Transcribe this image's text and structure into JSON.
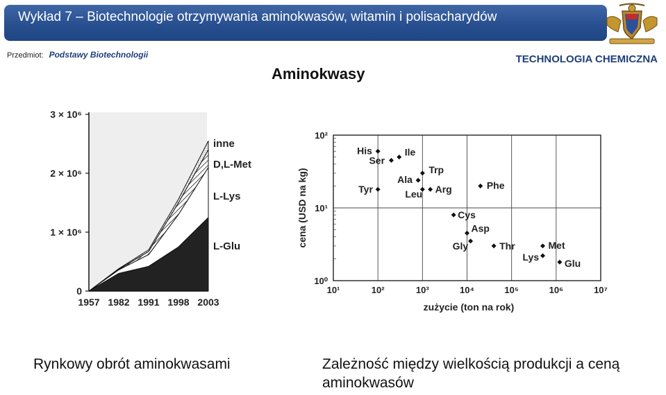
{
  "header": {
    "title": "Wykład 7 – Biotechnologie otrzymywania aminokwasów, witamin i polisacharydów",
    "subject_label": "Przedmiot:",
    "subject_value": "Podstawy Biotechnologii",
    "department": "TECHNOLOGIA CHEMICZNA",
    "crest_icon": "university-crest-icon"
  },
  "section_title": "Aminokwasy",
  "captions": {
    "left": "Rynkowy obrót aminokwasami",
    "right": "Zależność między wielkością produkcji a ceną aminokwasów"
  },
  "colors": {
    "banner": "#2b5291",
    "accent_text": "#1f3f7a"
  },
  "chart_data": [
    {
      "type": "area",
      "stacked": true,
      "x": [
        "1957",
        "1982",
        "1991",
        "1998",
        "2003"
      ],
      "ytick_labels": [
        "0",
        "1 × 10⁶",
        "2 × 10⁶",
        "3 × 10⁶"
      ],
      "ylim": [
        0,
        3000000
      ],
      "series": [
        {
          "name": "L-Glu",
          "values": [
            0,
            300000,
            420000,
            750000,
            1250000
          ]
        },
        {
          "name": "L-Lys",
          "values": [
            0,
            60000,
            200000,
            550000,
            850000
          ]
        },
        {
          "name": "D,L-Met",
          "values": [
            0,
            10000,
            50000,
            200000,
            300000
          ]
        },
        {
          "name": "inne",
          "values": [
            0,
            10000,
            30000,
            60000,
            150000
          ]
        }
      ]
    },
    {
      "type": "scatter",
      "xlabel": "zużycie (ton na rok)",
      "ylabel": "cena (USD na kg)",
      "x_log": true,
      "y_log": true,
      "xlim": [
        10,
        10000000
      ],
      "ylim": [
        1,
        100
      ],
      "xtick_labels": [
        "10¹",
        "10²",
        "10³",
        "10⁴",
        "10⁵",
        "10⁶",
        "10⁷"
      ],
      "ytick_labels": [
        "10⁰",
        "10¹",
        "10²"
      ],
      "points": [
        {
          "label": "His",
          "x": 100,
          "y": 60
        },
        {
          "label": "Ile",
          "x": 300,
          "y": 50
        },
        {
          "label": "Ser",
          "x": 200,
          "y": 45
        },
        {
          "label": "Trp",
          "x": 1000,
          "y": 30
        },
        {
          "label": "Ala",
          "x": 800,
          "y": 24
        },
        {
          "label": "Tyr",
          "x": 100,
          "y": 18
        },
        {
          "label": "Leu",
          "x": 1000,
          "y": 18
        },
        {
          "label": "Arg",
          "x": 1500,
          "y": 18
        },
        {
          "label": "Phe",
          "x": 20000,
          "y": 20
        },
        {
          "label": "Cys",
          "x": 5000,
          "y": 8
        },
        {
          "label": "Asp",
          "x": 10000,
          "y": 4.5
        },
        {
          "label": "Gly",
          "x": 12000,
          "y": 3.5
        },
        {
          "label": "Thr",
          "x": 40000,
          "y": 3
        },
        {
          "label": "Met",
          "x": 500000,
          "y": 3
        },
        {
          "label": "Lys",
          "x": 500000,
          "y": 2.2
        },
        {
          "label": "Glu",
          "x": 1200000,
          "y": 1.8
        }
      ]
    }
  ]
}
